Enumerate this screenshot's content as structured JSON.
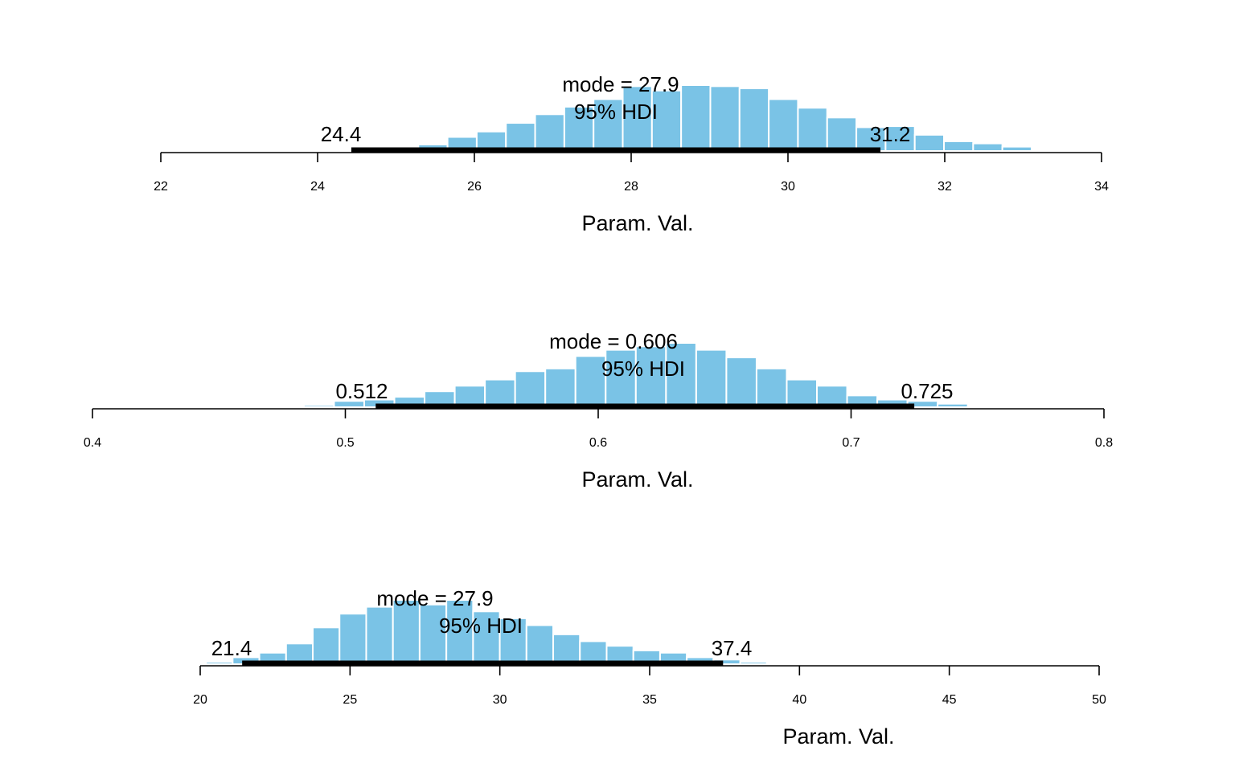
{
  "chart_data": [
    {
      "type": "bar",
      "xlabel": "Param. Val.",
      "xlim": [
        22,
        34
      ],
      "ticks": [
        "22",
        "24",
        "26",
        "28",
        "30",
        "32",
        "34"
      ],
      "mode_label": "mode = 27.9",
      "hdi_label": "95% HDI",
      "hdi_low_label": "24.4",
      "hdi_high_label": "31.2",
      "hdi": [
        24.43,
        31.18
      ],
      "bin_start": 23.05,
      "bin_width": 0.3725,
      "values": [
        1,
        1,
        1,
        1,
        3,
        4,
        6,
        13,
        18,
        26,
        34,
        41,
        48,
        60,
        56,
        61,
        60,
        58,
        48,
        40,
        31,
        22,
        23,
        15,
        9,
        7,
        4,
        1,
        1,
        1
      ]
    },
    {
      "type": "bar",
      "xlabel": "Param. Val.",
      "xlim": [
        0.4,
        0.8
      ],
      "ticks": [
        "0.4",
        "0.5",
        "0.6",
        "0.7",
        "0.8"
      ],
      "mode_label": "mode = 0.606",
      "hdi_label": "95% HDI",
      "hdi_low_label": "0.512",
      "hdi_high_label": "0.725",
      "hdi": [
        0.512,
        0.725
      ],
      "bin_start": 0.4836,
      "bin_width": 0.011935,
      "values": [
        3,
        9,
        11,
        15,
        23,
        31,
        40,
        52,
        56,
        74,
        83,
        88,
        93,
        83,
        72,
        56,
        40,
        31,
        17,
        11,
        9,
        5,
        1,
        1,
        1,
        1
      ]
    },
    {
      "type": "bar",
      "xlabel": "Param. Val.",
      "xlim": [
        20,
        50
      ],
      "ticks": [
        "20",
        "25",
        "30",
        "35",
        "40",
        "45",
        "50"
      ],
      "mode_label": "mode = 27.9",
      "hdi_label": "95% HDI",
      "hdi_low_label": "21.4",
      "hdi_high_label": "37.4",
      "hdi": [
        21.4,
        37.45
      ],
      "bin_start": 19.3,
      "bin_width": 0.8915,
      "values": [
        0.5,
        1,
        3,
        5,
        9,
        16,
        22,
        25,
        28,
        26,
        28,
        23,
        20,
        17,
        13,
        10,
        8,
        6,
        5,
        3,
        2,
        1,
        0.5,
        0.3
      ]
    }
  ]
}
